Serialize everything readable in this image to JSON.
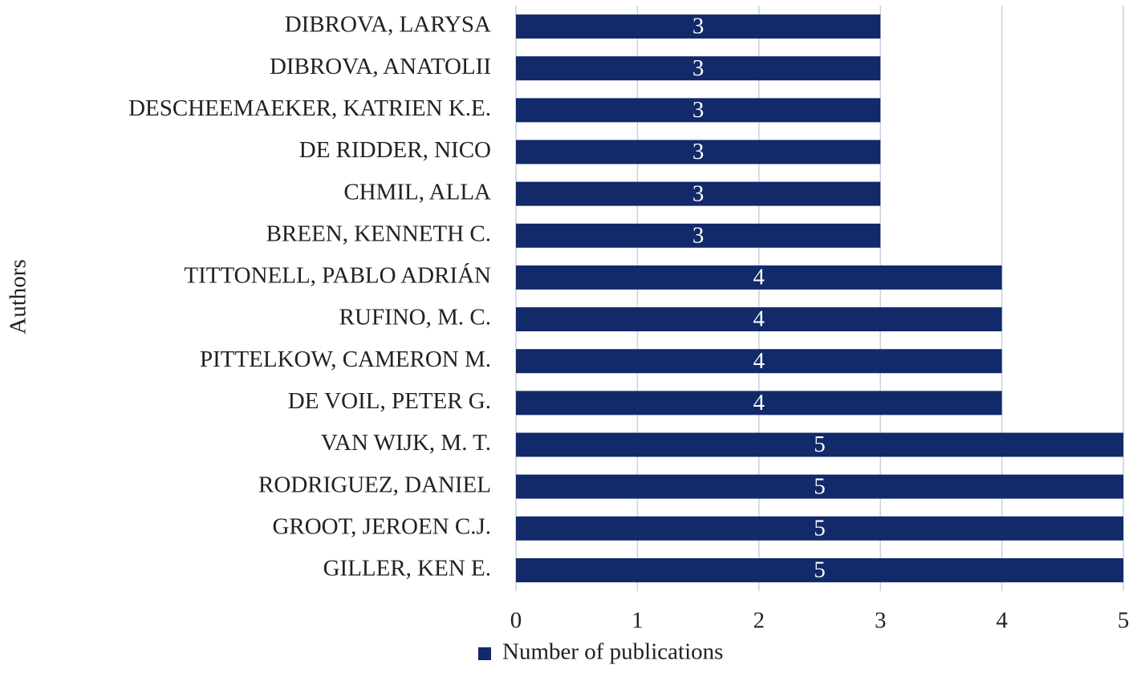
{
  "chart_data": {
    "type": "barh",
    "y_label": "Authors",
    "categories": [
      "DIBROVA, LARYSA",
      "DIBROVA, ANATOLII",
      "DESCHEEMAEKER, KATRIEN K.E.",
      "DE RIDDER, NICO",
      "CHMIL, ALLA",
      "BREEN, KENNETH C.",
      "TITTONELL, PABLO ADRIÁN",
      "RUFINO, M. C.",
      "PITTELKOW, CAMERON M.",
      "DE VOIL, PETER G.",
      "VAN WIJK, M. T.",
      "RODRIGUEZ, DANIEL",
      "GROOT, JEROEN C.J.",
      "GILLER, KEN E."
    ],
    "series": [
      {
        "name": "Number of publications",
        "color": "#12296a",
        "values": [
          3,
          3,
          3,
          3,
          3,
          3,
          4,
          4,
          4,
          4,
          5,
          5,
          5,
          5
        ]
      }
    ],
    "xlim": [
      0,
      5
    ],
    "xticks": [
      0,
      1,
      2,
      3,
      4,
      5
    ],
    "grid": true,
    "legend": "bottom"
  }
}
